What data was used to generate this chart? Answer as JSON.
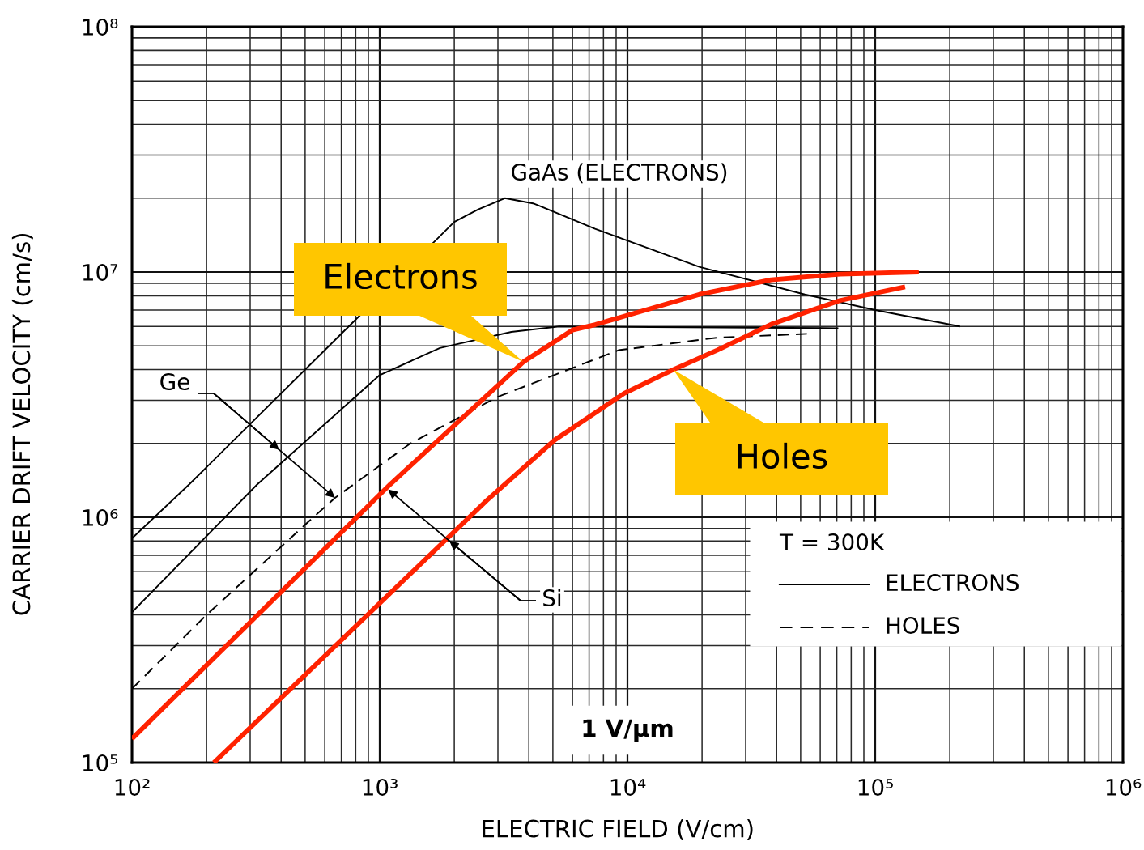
{
  "chart_data": {
    "type": "line",
    "xlabel": "ELECTRIC FIELD (V/cm)",
    "ylabel": "CARRIER DRIFT VELOCITY (cm/s)",
    "log": "xy",
    "xlim": [
      100,
      1000000
    ],
    "ylim": [
      100000,
      100000000
    ],
    "xticks": [
      {
        "value": 100,
        "label": "10²"
      },
      {
        "value": 1000,
        "label": "10³"
      },
      {
        "value": 10000,
        "label": "10⁴"
      },
      {
        "value": 100000,
        "label": "10⁵"
      },
      {
        "value": 1000000,
        "label": "10⁶"
      }
    ],
    "yticks": [
      {
        "value": 100000,
        "label": "10⁵"
      },
      {
        "value": 1000000,
        "label": "10⁶"
      },
      {
        "value": 10000000,
        "label": "10⁷"
      },
      {
        "value": 100000000,
        "label": "10⁸"
      }
    ],
    "grid": true,
    "series": [
      {
        "name": "GaAs (ELECTRONS)",
        "color": "#000000",
        "line_style": "solid",
        "x": [
          100,
          170,
          700,
          2000,
          2500,
          3200,
          4200,
          7400,
          19500,
          52000,
          100000,
          220000
        ],
        "values": [
          820000,
          1360000,
          5600000,
          16000000,
          18000000,
          20000000,
          19000000,
          15000000,
          10500000,
          8100000,
          7000000,
          6000000
        ]
      },
      {
        "color": "#000000",
        "line_style": "solid",
        "x": [
          100,
          320,
          1000,
          1750,
          3400,
          5300,
          71000
        ],
        "values": [
          410000,
          1360000,
          3800000,
          4900000,
          5700000,
          6000000,
          5900000
        ]
      },
      {
        "color": "#000000",
        "line_style": "dashed",
        "x": [
          100,
          200,
          510,
          660,
          1330,
          3000,
          9200,
          23000,
          54000
        ],
        "values": [
          200000,
          400000,
          950000,
          1200000,
          2000000,
          3100000,
          4800000,
          5400000,
          5600000
        ]
      },
      {
        "color": "#ff2200",
        "line_style": "solid",
        "x": [
          100,
          1100,
          3000,
          3800,
          6000,
          7400,
          19500,
          38000,
          72000,
          150000
        ],
        "values": [
          125000,
          1360000,
          3450000,
          4300000,
          5800000,
          6100000,
          8100000,
          9300000,
          9800000,
          10000000
        ]
      },
      {
        "color": "#ff2200",
        "line_style": "solid",
        "x": [
          214,
          2700,
          5100,
          9700,
          15300,
          23000,
          38500,
          72000,
          132000
        ],
        "values": [
          100000,
          1170000,
          2070000,
          3200000,
          4000000,
          4800000,
          6150000,
          7650000,
          8700000
        ]
      }
    ],
    "annotations": [
      {
        "text": "Electrons",
        "x": 3800,
        "y": 4300000
      },
      {
        "text": "Holes",
        "x": 15300,
        "y": 4000000
      },
      {
        "text": "Ge",
        "x": 660,
        "y": 1200000
      },
      {
        "text": "Si",
        "x": 1080,
        "y": 1300000
      },
      "T = 300K",
      "ELECTRONS",
      "HOLES",
      "1 V/µm"
    ]
  }
}
